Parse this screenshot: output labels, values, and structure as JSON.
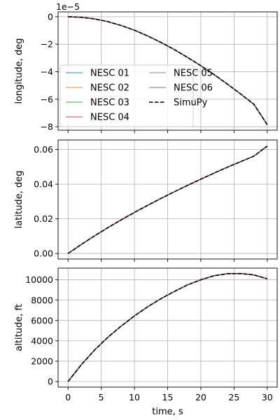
{
  "chart_data": [
    {
      "type": "line",
      "ylabel": "longitude, deg",
      "offset_label": "1e−5",
      "xlim": [
        -1.5,
        31.5
      ],
      "ylim": [
        -8.25e-05,
        3.5e-06
      ],
      "yticks": [
        0,
        -2e-05,
        -4e-05,
        -6e-05,
        -8e-05
      ],
      "ytick_labels": [
        "0",
        "−2",
        "−4",
        "−6",
        "−8"
      ],
      "xticks": [
        0,
        5,
        10,
        15,
        20,
        25,
        30
      ],
      "grid": true,
      "legend": {
        "placement": "lower-left",
        "columns": 2,
        "entries": [
          "NESC 01",
          "NESC 02",
          "NESC 03",
          "NESC 04",
          "NESC 05",
          "NESC 06",
          "SimuPy"
        ]
      },
      "x": [
        0,
        2,
        4,
        6,
        8,
        10,
        12,
        14,
        16,
        18,
        20,
        22,
        24,
        26,
        28,
        30
      ],
      "series": [
        {
          "name": "NESC 01",
          "color": "#1f77b4",
          "dashed": false,
          "values": [
            0,
            -4e-07,
            -1.6e-06,
            -3.6e-06,
            -6.4e-06,
            -9.8e-06,
            -1.4e-05,
            -1.87e-05,
            -2.39e-05,
            -2.96e-05,
            -3.56e-05,
            -4.21e-05,
            -4.9e-05,
            -5.62e-05,
            -6.37e-05,
            -7.85e-05
          ]
        },
        {
          "name": "NESC 02",
          "color": "#ff7f0e",
          "dashed": false,
          "values": [
            0,
            -4e-07,
            -1.6e-06,
            -3.6e-06,
            -6.4e-06,
            -9.8e-06,
            -1.4e-05,
            -1.87e-05,
            -2.39e-05,
            -2.96e-05,
            -3.56e-05,
            -4.21e-05,
            -4.9e-05,
            -5.62e-05,
            -6.37e-05,
            -7.85e-05
          ]
        },
        {
          "name": "NESC 03",
          "color": "#2ca02c",
          "dashed": false,
          "values": [
            0,
            -4e-07,
            -1.6e-06,
            -3.6e-06,
            -6.4e-06,
            -9.8e-06,
            -1.4e-05,
            -1.87e-05,
            -2.39e-05,
            -2.96e-05,
            -3.56e-05,
            -4.21e-05,
            -4.9e-05,
            -5.62e-05,
            -6.37e-05,
            -7.85e-05
          ]
        },
        {
          "name": "NESC 04",
          "color": "#d62728",
          "dashed": false,
          "values": [
            0,
            -4e-07,
            -1.6e-06,
            -3.6e-06,
            -6.4e-06,
            -9.8e-06,
            -1.4e-05,
            -1.87e-05,
            -2.39e-05,
            -2.96e-05,
            -3.56e-05,
            -4.21e-05,
            -4.9e-05,
            -5.62e-05,
            -6.37e-05,
            -7.85e-05
          ]
        },
        {
          "name": "NESC 05",
          "color": "#9467bd",
          "dashed": false,
          "values": [
            0,
            -4e-07,
            -1.6e-06,
            -3.6e-06,
            -6.4e-06,
            -9.8e-06,
            -1.4e-05,
            -1.87e-05,
            -2.39e-05,
            -2.96e-05,
            -3.56e-05,
            -4.21e-05,
            -4.9e-05,
            -5.62e-05,
            -6.37e-05,
            -7.85e-05
          ]
        },
        {
          "name": "NESC 06",
          "color": "#8c564b",
          "dashed": false,
          "values": [
            0,
            -4e-07,
            -1.6e-06,
            -3.6e-06,
            -6.4e-06,
            -9.8e-06,
            -1.4e-05,
            -1.87e-05,
            -2.39e-05,
            -2.96e-05,
            -3.56e-05,
            -4.21e-05,
            -4.9e-05,
            -5.62e-05,
            -6.37e-05,
            -7.85e-05
          ]
        },
        {
          "name": "SimuPy",
          "color": "#000000",
          "dashed": true,
          "values": [
            0,
            -4e-07,
            -1.6e-06,
            -3.6e-06,
            -6.4e-06,
            -9.8e-06,
            -1.4e-05,
            -1.87e-05,
            -2.39e-05,
            -2.96e-05,
            -3.56e-05,
            -4.21e-05,
            -4.9e-05,
            -5.62e-05,
            -6.37e-05,
            -7.85e-05
          ]
        }
      ]
    },
    {
      "type": "line",
      "ylabel": "latitude, deg",
      "xlim": [
        -1.5,
        31.5
      ],
      "ylim": [
        -0.0032,
        0.0655
      ],
      "yticks": [
        0,
        0.02,
        0.04,
        0.06
      ],
      "ytick_labels": [
        "0.00",
        "0.02",
        "0.04",
        "0.06"
      ],
      "xticks": [
        0,
        5,
        10,
        15,
        20,
        25,
        30
      ],
      "grid": true,
      "x": [
        0,
        2,
        4,
        6,
        8,
        10,
        12,
        14,
        16,
        18,
        20,
        22,
        24,
        26,
        28,
        30
      ],
      "series": [
        {
          "name": "NESC 01",
          "color": "#1f77b4",
          "dashed": false,
          "values": [
            0,
            0.0052,
            0.0102,
            0.0149,
            0.0194,
            0.0237,
            0.0278,
            0.0318,
            0.0356,
            0.0393,
            0.0429,
            0.0464,
            0.0498,
            0.053,
            0.0562,
            0.062
          ]
        },
        {
          "name": "NESC 02",
          "color": "#ff7f0e",
          "dashed": false,
          "values": [
            0,
            0.0052,
            0.0102,
            0.0149,
            0.0194,
            0.0237,
            0.0278,
            0.0318,
            0.0356,
            0.0393,
            0.0429,
            0.0464,
            0.0498,
            0.053,
            0.0562,
            0.062
          ]
        },
        {
          "name": "NESC 03",
          "color": "#2ca02c",
          "dashed": false,
          "values": [
            0,
            0.0052,
            0.0102,
            0.0149,
            0.0194,
            0.0237,
            0.0278,
            0.0318,
            0.0356,
            0.0393,
            0.0429,
            0.0464,
            0.0498,
            0.053,
            0.0562,
            0.062
          ]
        },
        {
          "name": "NESC 04",
          "color": "#d62728",
          "dashed": false,
          "values": [
            0,
            0.0052,
            0.0102,
            0.0149,
            0.0194,
            0.0237,
            0.0278,
            0.0318,
            0.0356,
            0.0393,
            0.0429,
            0.0464,
            0.0498,
            0.053,
            0.0562,
            0.062
          ]
        },
        {
          "name": "NESC 05",
          "color": "#9467bd",
          "dashed": false,
          "values": [
            0,
            0.0052,
            0.0102,
            0.0149,
            0.0194,
            0.0237,
            0.0278,
            0.0318,
            0.0356,
            0.0393,
            0.0429,
            0.0464,
            0.0498,
            0.053,
            0.0562,
            0.062
          ]
        },
        {
          "name": "NESC 06",
          "color": "#8c564b",
          "dashed": false,
          "values": [
            0,
            0.0052,
            0.0102,
            0.0149,
            0.0194,
            0.0237,
            0.0278,
            0.0318,
            0.0356,
            0.0393,
            0.0429,
            0.0464,
            0.0498,
            0.053,
            0.0562,
            0.062
          ]
        },
        {
          "name": "SimuPy",
          "color": "#000000",
          "dashed": true,
          "values": [
            0,
            0.0052,
            0.0102,
            0.0149,
            0.0194,
            0.0237,
            0.0278,
            0.0318,
            0.0356,
            0.0393,
            0.0429,
            0.0464,
            0.0498,
            0.053,
            0.0562,
            0.062
          ]
        }
      ]
    },
    {
      "type": "line",
      "xlabel": "time, s",
      "ylabel": "altitude, ft",
      "xlim": [
        -1.5,
        31.5
      ],
      "ylim": [
        -550,
        11150
      ],
      "yticks": [
        0,
        2000,
        4000,
        6000,
        8000,
        10000
      ],
      "ytick_labels": [
        "0",
        "2000",
        "4000",
        "6000",
        "8000",
        "10000"
      ],
      "xticks": [
        0,
        5,
        10,
        15,
        20,
        25,
        30
      ],
      "xtick_labels": [
        "0",
        "5",
        "10",
        "15",
        "20",
        "25",
        "30"
      ],
      "grid": true,
      "x": [
        0,
        2,
        4,
        6,
        8,
        10,
        12,
        14,
        16,
        18,
        20,
        22,
        24,
        26,
        28,
        30
      ],
      "series": [
        {
          "name": "NESC 01",
          "color": "#1f77b4",
          "dashed": false,
          "values": [
            0,
            1650,
            3100,
            4350,
            5450,
            6450,
            7350,
            8150,
            8850,
            9500,
            10000,
            10400,
            10600,
            10620,
            10480,
            10100
          ]
        },
        {
          "name": "NESC 02",
          "color": "#ff7f0e",
          "dashed": false,
          "values": [
            0,
            1650,
            3100,
            4350,
            5450,
            6450,
            7350,
            8150,
            8850,
            9500,
            10000,
            10400,
            10600,
            10620,
            10480,
            10100
          ]
        },
        {
          "name": "NESC 03",
          "color": "#2ca02c",
          "dashed": false,
          "values": [
            0,
            1650,
            3100,
            4350,
            5450,
            6450,
            7350,
            8150,
            8850,
            9500,
            10000,
            10400,
            10600,
            10620,
            10480,
            10100
          ]
        },
        {
          "name": "NESC 04",
          "color": "#d62728",
          "dashed": false,
          "values": [
            0,
            1650,
            3100,
            4350,
            5450,
            6450,
            7350,
            8150,
            8850,
            9500,
            10000,
            10400,
            10600,
            10620,
            10480,
            10100
          ]
        },
        {
          "name": "NESC 05",
          "color": "#9467bd",
          "dashed": false,
          "values": [
            0,
            1650,
            3100,
            4350,
            5450,
            6450,
            7350,
            8150,
            8850,
            9500,
            10000,
            10400,
            10600,
            10620,
            10480,
            10100
          ]
        },
        {
          "name": "NESC 06",
          "color": "#8c564b",
          "dashed": false,
          "values": [
            0,
            1650,
            3100,
            4350,
            5450,
            6450,
            7350,
            8150,
            8850,
            9500,
            10000,
            10400,
            10600,
            10620,
            10480,
            10100
          ]
        },
        {
          "name": "SimuPy",
          "color": "#000000",
          "dashed": true,
          "values": [
            0,
            1650,
            3100,
            4350,
            5450,
            6450,
            7350,
            8150,
            8850,
            9500,
            10000,
            10400,
            10600,
            10620,
            10480,
            10100
          ]
        }
      ]
    }
  ]
}
